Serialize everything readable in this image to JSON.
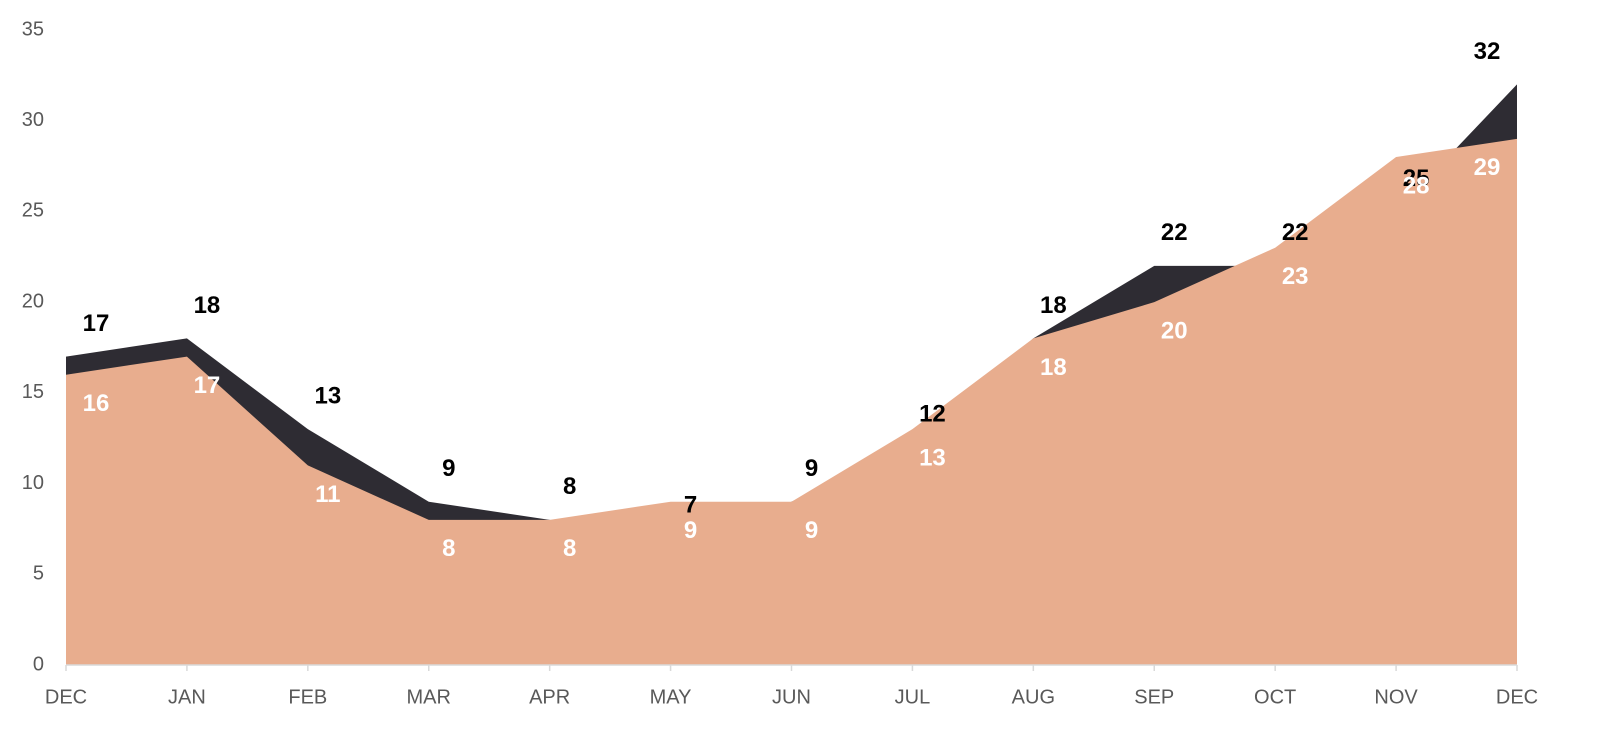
{
  "chart_data": {
    "type": "area",
    "categories": [
      "DEC",
      "JAN",
      "FEB",
      "MAR",
      "APR",
      "MAY",
      "JUN",
      "JUL",
      "AUG",
      "SEP",
      "OCT",
      "NOV",
      "DEC"
    ],
    "series": [
      {
        "color": "#2e2c33",
        "values": [
          17,
          18,
          13,
          9,
          8,
          7,
          9,
          12,
          18,
          22,
          22,
          25,
          32
        ]
      },
      {
        "color": "#e8ad8e",
        "values": [
          16,
          17,
          11,
          8,
          8,
          9,
          9,
          13,
          18,
          20,
          23,
          28,
          29
        ]
      }
    ],
    "ylim": [
      0,
      35
    ],
    "yticks": [
      0,
      5,
      10,
      15,
      20,
      25,
      30,
      35
    ],
    "grid": false
  }
}
